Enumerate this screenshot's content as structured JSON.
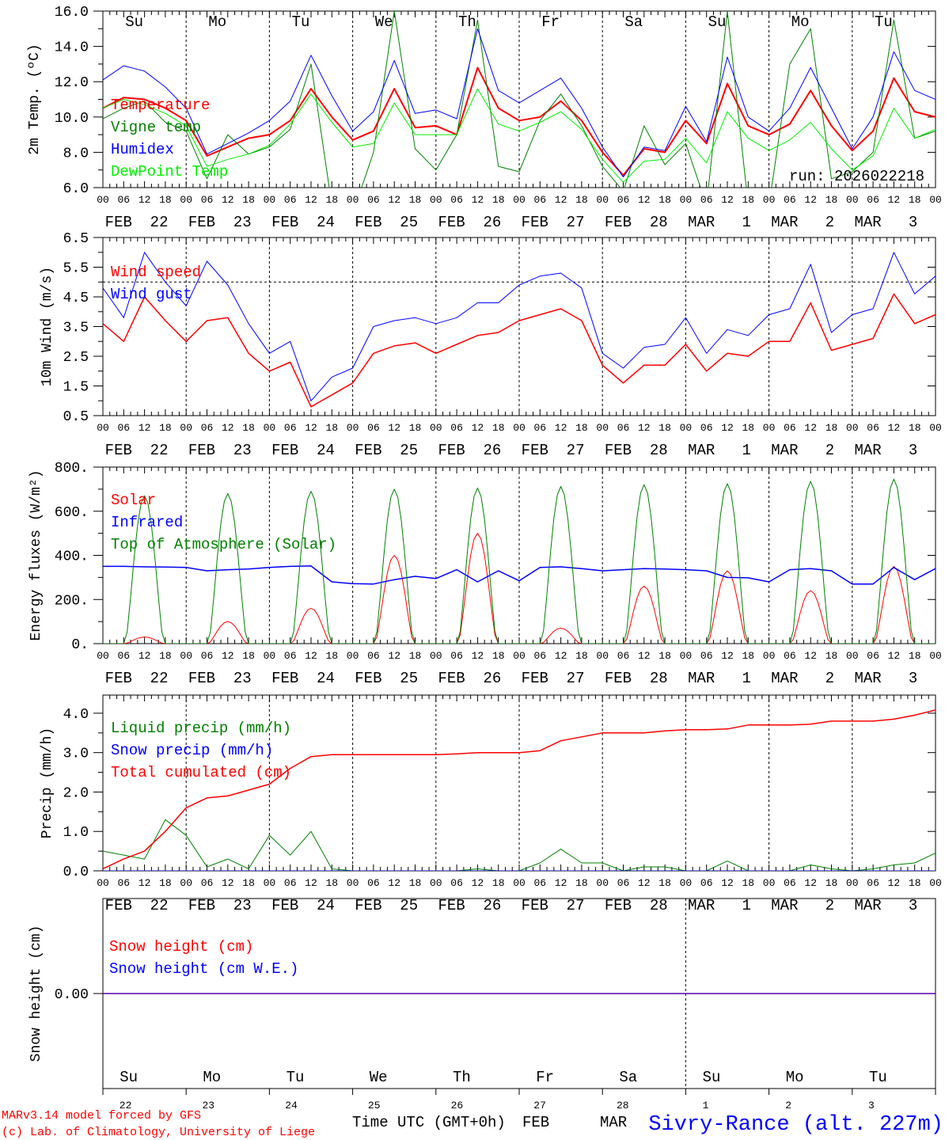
{
  "colors": {
    "red": "#ff0000",
    "dark_green": "#008000",
    "blue": "#0000ff",
    "light_green": "#00ee00",
    "black": "#000000"
  },
  "days": [
    {
      "abbr": "Su",
      "color": "#ff0000",
      "date": "FEB  22",
      "num": "22"
    },
    {
      "abbr": "Mo",
      "color": "#000000",
      "date": "FEB  23",
      "num": "23"
    },
    {
      "abbr": "Tu",
      "color": "#000000",
      "date": "FEB  24",
      "num": "24"
    },
    {
      "abbr": "We",
      "color": "#000000",
      "date": "FEB  25",
      "num": "25"
    },
    {
      "abbr": "Th",
      "color": "#000000",
      "date": "FEB  26",
      "num": "26"
    },
    {
      "abbr": "Fr",
      "color": "#000000",
      "date": "FEB  27",
      "num": "27"
    },
    {
      "abbr": "Sa",
      "color": "#ff0000",
      "date": "FEB  28",
      "num": "28"
    },
    {
      "abbr": "Su",
      "color": "#ff0000",
      "date": "MAR   1",
      "num": "1"
    },
    {
      "abbr": "Mo",
      "color": "#000000",
      "date": "MAR   2",
      "num": "2"
    },
    {
      "abbr": "Tu",
      "color": "#000000",
      "date": "MAR   3",
      "num": "3"
    }
  ],
  "hour_labels": [
    "00",
    "06",
    "12",
    "18"
  ],
  "chart_data": [
    {
      "type": "line",
      "ylabel": "2m Temp. (ºC)",
      "ylim": [
        6,
        16
      ],
      "yticks": [
        6,
        8,
        10,
        12,
        14,
        16
      ],
      "ytick_labels": [
        "6.0",
        "8.0",
        "10.0",
        "12.0",
        "14.0",
        "16.0"
      ],
      "x_step_hours": 6,
      "annotation": "run: 2026022218",
      "series": [
        {
          "name": "Temperature",
          "color": "#ff0000",
          "width": 2,
          "values": [
            10.5,
            11.1,
            11.0,
            10.5,
            9.8,
            7.8,
            8.3,
            8.8,
            9.0,
            9.8,
            11.6,
            10.0,
            8.7,
            9.2,
            11.6,
            9.4,
            9.5,
            9.0,
            12.8,
            10.5,
            9.8,
            10.0,
            10.9,
            9.8,
            8.0,
            6.7,
            8.2,
            8.0,
            9.8,
            8.5,
            11.9,
            9.5,
            9.0,
            9.6,
            11.5,
            9.5,
            8.1,
            9.2,
            12.2,
            10.3,
            10.0
          ]
        },
        {
          "name": "Vigne temp",
          "color": "#008000",
          "width": 1,
          "values": [
            9.9,
            10.5,
            10.9,
            9.7,
            9.2,
            6.5,
            9.0,
            7.9,
            8.3,
            9.3,
            13.0,
            5.0,
            4.5,
            8.0,
            16.0,
            8.2,
            7.0,
            9.0,
            15.5,
            7.2,
            6.9,
            9.8,
            11.3,
            9.5,
            7.2,
            5.8,
            9.5,
            7.3,
            8.5,
            5.0,
            16.0,
            5.0,
            5.0,
            13.0,
            15.0,
            6.5,
            6.9,
            8.0,
            15.5,
            8.8,
            9.2
          ]
        },
        {
          "name": "Humidex",
          "color": "#0000ff",
          "width": 1,
          "values": [
            12.1,
            12.9,
            12.6,
            11.7,
            10.5,
            7.9,
            8.5,
            9.1,
            9.8,
            10.9,
            13.5,
            11.2,
            9.2,
            10.3,
            13.2,
            10.2,
            10.4,
            9.9,
            15.0,
            11.5,
            10.8,
            11.5,
            12.2,
            10.5,
            8.3,
            6.6,
            8.3,
            8.1,
            10.6,
            8.6,
            13.4,
            10.0,
            9.2,
            10.5,
            12.8,
            10.5,
            8.2,
            10.0,
            13.7,
            11.5,
            11.0
          ]
        },
        {
          "name": "DewPoint Temp",
          "color": "#00ee00",
          "width": 1,
          "values": [
            10.5,
            11.0,
            10.7,
            10.2,
            9.5,
            7.2,
            7.6,
            7.9,
            8.4,
            9.6,
            11.3,
            9.7,
            8.3,
            8.5,
            10.8,
            9.0,
            9.0,
            9.0,
            11.6,
            9.6,
            9.2,
            9.7,
            10.3,
            9.3,
            7.6,
            6.3,
            7.5,
            7.6,
            8.8,
            7.4,
            10.3,
            8.8,
            8.1,
            8.7,
            9.7,
            8.2,
            7.0,
            7.8,
            10.5,
            8.8,
            9.3
          ]
        }
      ]
    },
    {
      "type": "line",
      "ylabel": "10m Wind (m/s)",
      "ylim": [
        0.5,
        6.5
      ],
      "yticks": [
        0.5,
        1.5,
        2.5,
        3.5,
        4.5,
        5.5,
        6.5
      ],
      "ytick_labels": [
        "0.5",
        "1.5",
        "2.5",
        "3.5",
        "4.5",
        "5.5",
        "6.5"
      ],
      "reference_line": 5.0,
      "x_step_hours": 6,
      "series": [
        {
          "name": "Wind speed",
          "color": "#ff0000",
          "width": 1.5,
          "values": [
            3.6,
            3.0,
            4.5,
            3.7,
            3.0,
            3.7,
            3.8,
            2.6,
            2.0,
            2.3,
            0.8,
            1.2,
            1.6,
            2.6,
            2.85,
            2.95,
            2.6,
            2.9,
            3.2,
            3.3,
            3.7,
            3.9,
            4.1,
            3.7,
            2.2,
            1.6,
            2.2,
            2.2,
            2.9,
            2.0,
            2.6,
            2.5,
            3.0,
            3.0,
            4.3,
            2.7,
            2.9,
            3.1,
            4.6,
            3.6,
            3.9
          ]
        },
        {
          "name": "Wind gust",
          "color": "#0000ff",
          "width": 1,
          "values": [
            4.8,
            3.8,
            6.0,
            5.0,
            4.2,
            5.7,
            4.9,
            3.6,
            2.6,
            3.0,
            1.0,
            1.8,
            2.1,
            3.5,
            3.7,
            3.8,
            3.6,
            3.8,
            4.3,
            4.3,
            4.9,
            5.2,
            5.3,
            4.8,
            2.6,
            2.1,
            2.8,
            2.9,
            3.8,
            2.6,
            3.4,
            3.2,
            3.9,
            4.1,
            5.6,
            3.3,
            3.9,
            4.1,
            6.0,
            4.6,
            5.2
          ]
        }
      ]
    },
    {
      "type": "line",
      "ylabel": "Energy fluxes (W/m²)",
      "ylim": [
        0,
        800
      ],
      "yticks": [
        0,
        200,
        400,
        600,
        800
      ],
      "ytick_labels": [
        "0.",
        "200.",
        "400.",
        "600.",
        "800."
      ],
      "daylight_hours": [
        6.5,
        17.5
      ],
      "series": [
        {
          "name": "Solar",
          "color": "#ff0000",
          "width": 1,
          "daily_peaks": [
            30,
            100,
            160,
            400,
            500,
            70,
            260,
            330,
            240,
            350
          ]
        },
        {
          "name": "Infrared",
          "color": "#0000ff",
          "width": 1.5,
          "x_step_hours": 6,
          "values": [
            350,
            350,
            348,
            347,
            345,
            330,
            335,
            338,
            345,
            350,
            352,
            280,
            272,
            270,
            290,
            305,
            295,
            335,
            280,
            330,
            285,
            345,
            348,
            340,
            330,
            335,
            340,
            338,
            335,
            330,
            300,
            298,
            280,
            335,
            340,
            330,
            270,
            270,
            345,
            290,
            340
          ]
        },
        {
          "name": "Top of Atmosphere (Solar)",
          "color": "#008000",
          "width": 1,
          "daily_peaks": [
            670,
            680,
            690,
            700,
            705,
            712,
            720,
            725,
            735,
            745
          ]
        }
      ]
    },
    {
      "type": "line",
      "ylabel": "Precip (mm/h)",
      "ylim": [
        0,
        4.46
      ],
      "yticks": [
        0,
        1,
        2,
        3,
        4
      ],
      "ytick_labels": [
        "0.0",
        "1.0",
        "2.0",
        "3.0",
        "4.0"
      ],
      "x_step_hours": 6,
      "series": [
        {
          "name": "Liquid precip (mm/h)",
          "color": "#008000",
          "width": 1,
          "values": [
            0.5,
            0.4,
            0.3,
            1.3,
            0.9,
            0.1,
            0.3,
            0.05,
            0.9,
            0.4,
            1.0,
            0.05,
            0,
            0,
            0,
            0,
            0,
            0,
            0.05,
            0,
            0,
            0.2,
            0.55,
            0.2,
            0.2,
            0,
            0.1,
            0.1,
            0,
            0,
            0.25,
            0,
            0,
            0,
            0.15,
            0.05,
            0,
            0.05,
            0.15,
            0.2,
            0.45
          ]
        },
        {
          "name": "Snow precip (mm/h)",
          "color": "#0000ff",
          "width": 1,
          "values": [
            0,
            0,
            0,
            0,
            0,
            0,
            0,
            0,
            0,
            0,
            0,
            0,
            0,
            0,
            0,
            0,
            0,
            0,
            0,
            0,
            0,
            0,
            0,
            0,
            0,
            0,
            0,
            0,
            0,
            0,
            0,
            0,
            0,
            0,
            0,
            0,
            0,
            0,
            0,
            0,
            0
          ]
        },
        {
          "name": "Total cumulated (cm)",
          "color": "#ff0000",
          "width": 1.5,
          "values": [
            0.05,
            0.3,
            0.5,
            1.0,
            1.6,
            1.85,
            1.9,
            2.05,
            2.2,
            2.6,
            2.9,
            2.95,
            2.95,
            2.95,
            2.95,
            2.95,
            2.95,
            2.97,
            3.0,
            3.0,
            3.0,
            3.05,
            3.3,
            3.4,
            3.5,
            3.5,
            3.5,
            3.55,
            3.58,
            3.58,
            3.6,
            3.7,
            3.7,
            3.7,
            3.72,
            3.8,
            3.8,
            3.8,
            3.85,
            3.95,
            4.08
          ]
        }
      ]
    },
    {
      "type": "line",
      "ylabel": "Snow height (cm)",
      "ylim": [
        -1,
        1
      ],
      "yticks": [
        0
      ],
      "ytick_labels": [
        "0.00"
      ],
      "x_step_hours": 240,
      "series": [
        {
          "name": "Snow height (cm)",
          "color": "#ff0000",
          "width": 1.5,
          "values": [
            0,
            0
          ]
        },
        {
          "name": "Snow height (cm W.E.)",
          "color": "#0000ff",
          "width": 1,
          "values": [
            0,
            0
          ]
        }
      ]
    }
  ],
  "footer": {
    "model": "MARv3.14 model forced by GFS",
    "credit": "(c) Lab. of Climatology, University of Liege",
    "xlabel": "Time UTC (GMT+0h)",
    "month_feb": "FEB",
    "month_mar": "MAR",
    "station": "Sivry-Rance (alt. 227m)"
  }
}
